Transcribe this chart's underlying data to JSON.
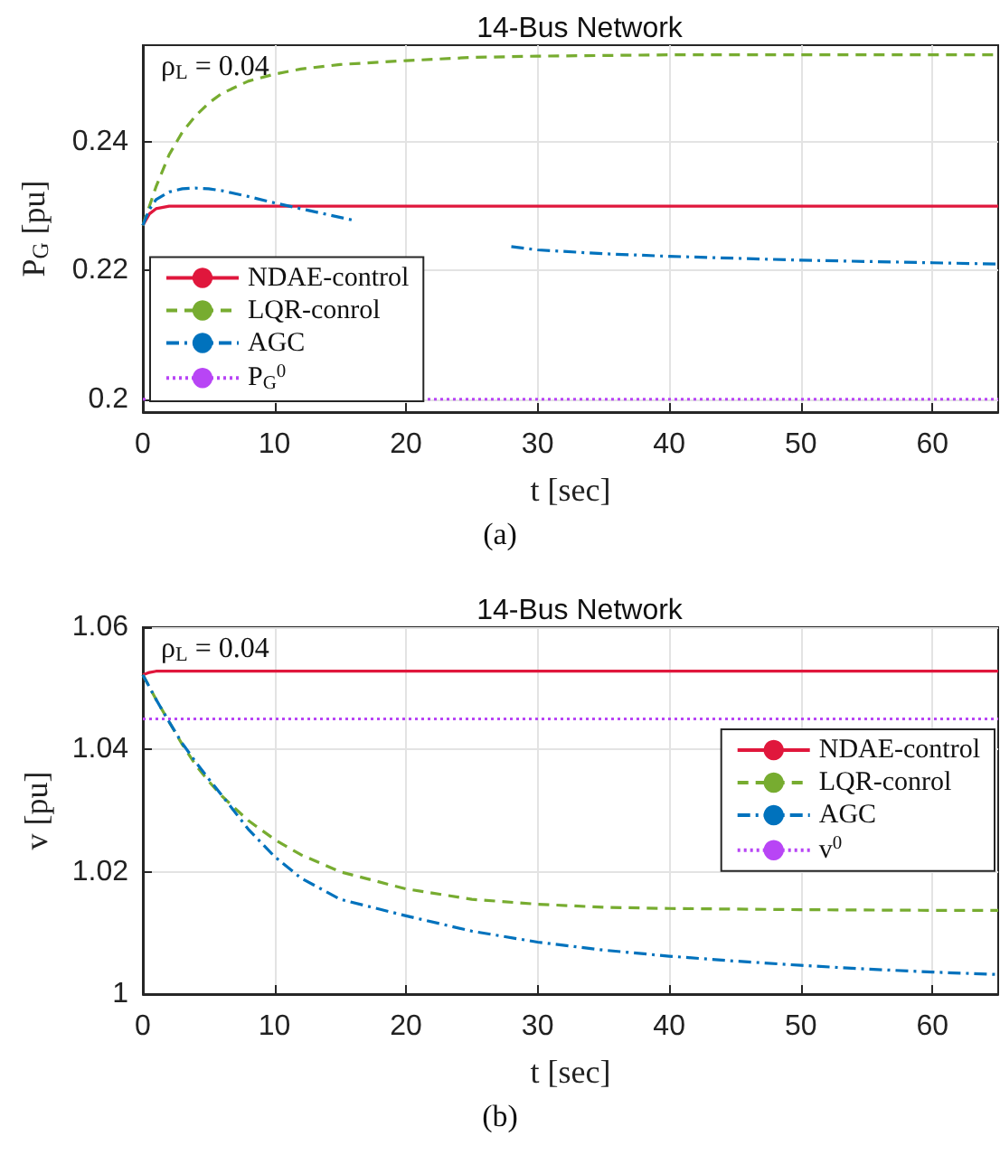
{
  "chart_data": [
    {
      "type": "line",
      "title": "14-Bus Network",
      "xlabel": "t [sec]",
      "ylabel": "P$_{G}$ [pu]",
      "annotations": [
        "ρ$_{L}$ = 0.04",
        "(a)"
      ],
      "xlim": [
        0,
        65
      ],
      "xticks": [
        0,
        10,
        20,
        30,
        40,
        50,
        60
      ],
      "ylim": [
        0.198,
        0.255
      ],
      "yticks": [
        0.2,
        0.22,
        0.24
      ],
      "grid": true,
      "legend": "bottom left",
      "marker": "none",
      "series": [
        {
          "name": "NDAE-control",
          "color": "#e0173c",
          "line_style": "solid",
          "x": [
            0,
            0.5,
            1,
            2,
            5,
            10,
            20,
            30,
            40,
            50,
            60,
            65
          ],
          "values": [
            0.227,
            0.2288,
            0.2296,
            0.23,
            0.23,
            0.23,
            0.23,
            0.23,
            0.23,
            0.23,
            0.23,
            0.23
          ]
        },
        {
          "name": "LQR-conrol",
          "color": "#77ac30",
          "line_style": "dashed",
          "x": [
            0,
            1,
            2,
            3,
            4,
            5,
            6,
            8,
            10,
            12,
            15,
            20,
            25,
            30,
            40,
            50,
            65
          ],
          "values": [
            0.227,
            0.233,
            0.238,
            0.2415,
            0.244,
            0.246,
            0.2475,
            0.2494,
            0.2505,
            0.2513,
            0.252,
            0.2526,
            0.2531,
            0.2533,
            0.2535,
            0.2535,
            0.2535
          ]
        },
        {
          "name": "AGC",
          "color": "#0072bd",
          "line_style": "dashdot",
          "x": [
            0,
            0.5,
            1,
            2,
            3,
            4,
            5,
            6,
            8,
            10,
            12,
            14,
            16,
            22,
            28,
            30,
            35,
            40,
            45,
            50,
            55,
            60,
            65
          ],
          "values": [
            0.227,
            0.2295,
            0.231,
            0.2322,
            0.2327,
            0.2328,
            0.2327,
            0.2324,
            0.2315,
            0.2305,
            0.2296,
            0.2287,
            0.2278,
            null,
            0.2237,
            0.2232,
            0.2226,
            0.2222,
            0.2219,
            0.2216,
            0.2214,
            0.2212,
            0.221
          ]
        },
        {
          "name": "P$_{G}$$^{0}$",
          "color": "#b845f5",
          "line_style": "dotted",
          "x": [
            0,
            65
          ],
          "values": [
            0.2,
            0.2
          ]
        }
      ]
    },
    {
      "type": "line",
      "title": "14-Bus Network",
      "xlabel": "t [sec]",
      "ylabel": "v [pu]",
      "annotations": [
        "ρ$_{L}$ = 0.04",
        "(b)"
      ],
      "xlim": [
        0,
        65
      ],
      "xticks": [
        0,
        10,
        20,
        30,
        40,
        50,
        60
      ],
      "ylim": [
        1,
        1.06
      ],
      "yticks": [
        1,
        1.02,
        1.04,
        1.06
      ],
      "grid": true,
      "legend": "right",
      "marker": "none",
      "series": [
        {
          "name": "NDAE-control",
          "color": "#e0173c",
          "line_style": "solid",
          "x": [
            0,
            0.5,
            1,
            2,
            5,
            10,
            20,
            30,
            40,
            50,
            60,
            65
          ],
          "values": [
            1.0522,
            1.0526,
            1.0528,
            1.0528,
            1.0528,
            1.0528,
            1.0528,
            1.0528,
            1.0528,
            1.0528,
            1.0528,
            1.0528
          ]
        },
        {
          "name": "LQR-conrol",
          "color": "#77ac30",
          "line_style": "dashed",
          "x": [
            0,
            1,
            2,
            3,
            4,
            5,
            6,
            8,
            10,
            12,
            15,
            20,
            25,
            30,
            35,
            40,
            50,
            60,
            65
          ],
          "values": [
            1.0522,
            1.0482,
            1.0445,
            1.0408,
            1.0375,
            1.0348,
            1.0324,
            1.0284,
            1.0253,
            1.0228,
            1.02,
            1.0172,
            1.0155,
            1.0147,
            1.0142,
            1.014,
            1.0138,
            1.0137,
            1.0137
          ]
        },
        {
          "name": "AGC",
          "color": "#0072bd",
          "line_style": "dashdot",
          "x": [
            0,
            1,
            2,
            3,
            4,
            5,
            6,
            8,
            10,
            12,
            15,
            20,
            25,
            30,
            35,
            40,
            45,
            50,
            55,
            60,
            65
          ],
          "values": [
            1.0522,
            1.0482,
            1.0445,
            1.041,
            1.038,
            1.0352,
            1.0325,
            1.027,
            1.0225,
            1.019,
            1.0155,
            1.0128,
            1.0103,
            1.0085,
            1.0072,
            1.0062,
            1.0054,
            1.0047,
            1.0041,
            1.0036,
            1.0032
          ]
        },
        {
          "name": "v$^{0}$",
          "color": "#b845f5",
          "line_style": "dotted",
          "x": [
            0,
            65
          ],
          "values": [
            1.045,
            1.045
          ]
        }
      ]
    }
  ]
}
